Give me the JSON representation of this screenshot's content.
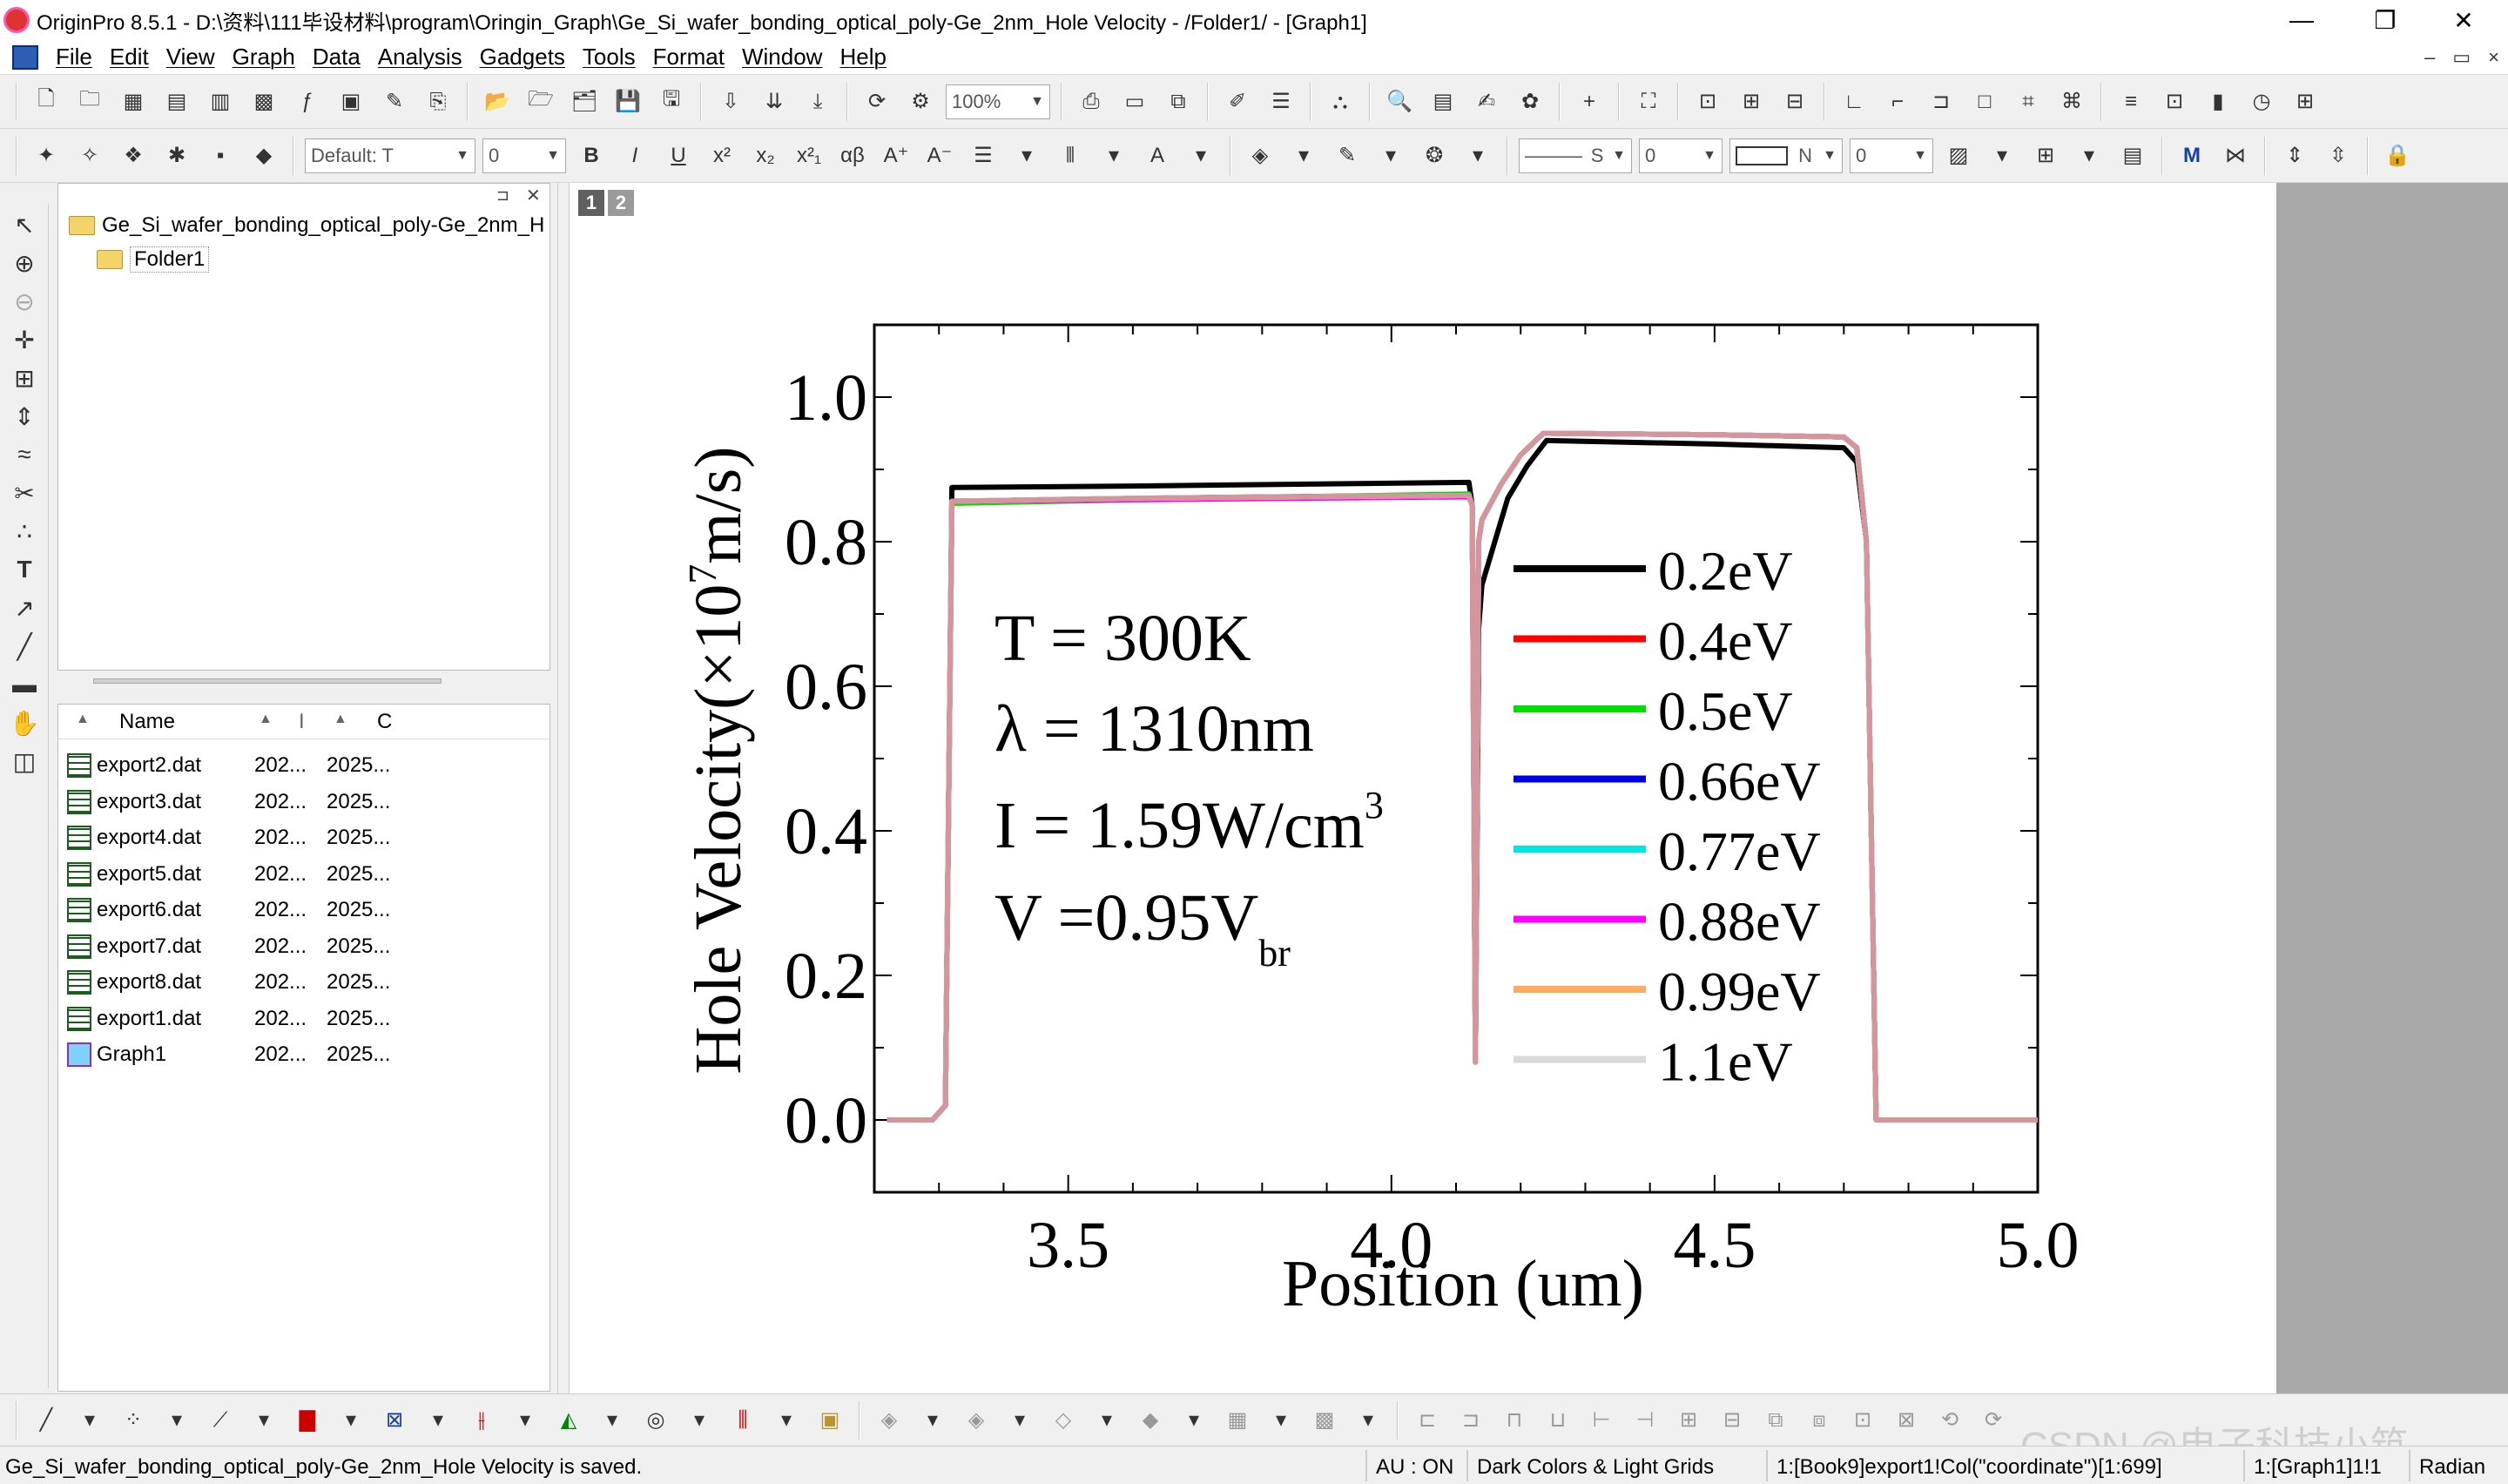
{
  "window": {
    "title": "OriginPro 8.5.1 - D:\\资料\\111毕设材料\\program\\Oringin_Graph\\Ge_Si_wafer_bonding_optical_poly-Ge_2nm_Hole Velocity - /Folder1/ - [Graph1]",
    "minimize": "—",
    "restore": "❐",
    "close": "✕"
  },
  "menu": {
    "items": [
      "File",
      "Edit",
      "View",
      "Graph",
      "Data",
      "Analysis",
      "Gadgets",
      "Tools",
      "Format",
      "Window",
      "Help"
    ],
    "mdi_min": "–",
    "mdi_restore": "▭",
    "mdi_close": "×"
  },
  "toolbar": {
    "zoom": "100%",
    "font": "Default: T",
    "font_size": "0",
    "line_style": "S",
    "line_width": "0",
    "fill_label": "N",
    "fill_size": "0"
  },
  "project": {
    "root": "Ge_Si_wafer_bonding_optical_poly-Ge_2nm_H",
    "folder": "Folder1",
    "columns": {
      "name": "Name",
      "col2": "I",
      "col3": "C"
    },
    "files": [
      {
        "name": "export2.dat",
        "c2": "202...",
        "c3": "2025..."
      },
      {
        "name": "export3.dat",
        "c2": "202...",
        "c3": "2025..."
      },
      {
        "name": "export4.dat",
        "c2": "202...",
        "c3": "2025..."
      },
      {
        "name": "export5.dat",
        "c2": "202...",
        "c3": "2025..."
      },
      {
        "name": "export6.dat",
        "c2": "202...",
        "c3": "2025..."
      },
      {
        "name": "export7.dat",
        "c2": "202...",
        "c3": "2025..."
      },
      {
        "name": "export8.dat",
        "c2": "202...",
        "c3": "2025..."
      },
      {
        "name": "export1.dat",
        "c2": "202...",
        "c3": "2025..."
      },
      {
        "name": "Graph1",
        "c2": "202...",
        "c3": "2025..."
      }
    ]
  },
  "layers": [
    "1",
    "2"
  ],
  "status": {
    "message": "Ge_Si_wafer_bonding_optical_poly-Ge_2nm_Hole Velocity is saved.",
    "au": "AU : ON",
    "theme": "Dark Colors & Light Grids",
    "cell": "1:[Book9]export1!Col(\"coordinate\")[1:699]",
    "graph": "1:[Graph1]1!1",
    "angle": "Radian"
  },
  "watermark": "CSDN @电子科技小筑",
  "colors": {
    "accent": "#2b5fb3",
    "plot_bg": "#ffffff",
    "mdi_bg": "#a8a8a8"
  },
  "chart_data": {
    "type": "line",
    "xlabel": "Position (um)",
    "ylabel_main": "Hole Velocity(×10",
    "ylabel_sup": "7",
    "ylabel_tail": "m/s)",
    "xlim": [
      3.2,
      5.0
    ],
    "ylim": [
      -0.1,
      1.1
    ],
    "xticks": [
      3.5,
      4.0,
      4.5,
      5.0
    ],
    "xtick_labels": [
      "3.5",
      "4.0",
      "4.5",
      "5.0"
    ],
    "yticks": [
      0.0,
      0.2,
      0.4,
      0.6,
      0.8,
      1.0
    ],
    "ytick_labels": [
      "0.0",
      "0.2",
      "0.4",
      "0.6",
      "0.8",
      "1.0"
    ],
    "legend_position": "right",
    "annotations": {
      "line1": "T = 300K",
      "line2": "λ = 1310nm",
      "line3_main": "I = 1.59W/cm",
      "line3_sup": "3",
      "line4_main": "V =0.95V",
      "line4_sub": "br"
    },
    "series": [
      {
        "name": "0.2eV",
        "color": "#000000",
        "x": [
          3.22,
          3.29,
          3.31,
          3.32,
          3.6,
          4.12,
          4.125,
          4.13,
          4.135,
          4.14,
          4.16,
          4.18,
          4.21,
          4.24,
          4.5,
          4.7,
          4.72,
          4.735,
          4.75,
          5.0
        ],
        "y": [
          0.0,
          0.0,
          0.02,
          0.875,
          0.877,
          0.882,
          0.85,
          0.08,
          0.68,
          0.74,
          0.8,
          0.86,
          0.905,
          0.94,
          0.935,
          0.93,
          0.91,
          0.8,
          0.0,
          0.0
        ]
      },
      {
        "name": "0.4eV",
        "color": "#ff0000",
        "x": [
          3.22,
          3.29,
          3.31,
          3.32,
          3.6,
          4.12,
          4.125,
          4.13,
          4.135,
          4.14,
          4.17,
          4.2,
          4.235,
          4.5,
          4.7,
          4.72,
          4.735,
          4.75,
          5.0
        ],
        "y": [
          0.0,
          0.0,
          0.02,
          0.855,
          0.86,
          0.865,
          0.85,
          0.08,
          0.8,
          0.83,
          0.88,
          0.92,
          0.95,
          0.948,
          0.945,
          0.93,
          0.8,
          0.0,
          0.0
        ]
      },
      {
        "name": "0.5eV",
        "color": "#00e000",
        "x": [
          3.22,
          3.29,
          3.31,
          3.32,
          3.6,
          4.12,
          4.125,
          4.13,
          4.135,
          4.14,
          4.17,
          4.2,
          4.235,
          4.5,
          4.7,
          4.72,
          4.735,
          4.75,
          5.0
        ],
        "y": [
          0.0,
          0.0,
          0.02,
          0.853,
          0.858,
          0.866,
          0.85,
          0.08,
          0.8,
          0.83,
          0.88,
          0.92,
          0.95,
          0.948,
          0.945,
          0.93,
          0.8,
          0.0,
          0.0
        ]
      },
      {
        "name": "0.66eV",
        "color": "#0000e6",
        "x": [
          3.22,
          3.29,
          3.31,
          3.32,
          3.6,
          4.12,
          4.125,
          4.13,
          4.135,
          4.14,
          4.17,
          4.2,
          4.235,
          4.5,
          4.7,
          4.72,
          4.735,
          4.75,
          5.0
        ],
        "y": [
          0.0,
          0.0,
          0.02,
          0.856,
          0.86,
          0.864,
          0.85,
          0.08,
          0.8,
          0.83,
          0.88,
          0.92,
          0.95,
          0.948,
          0.945,
          0.93,
          0.8,
          0.0,
          0.0
        ]
      },
      {
        "name": "0.77eV",
        "color": "#00e6e6",
        "x": [
          3.22,
          3.29,
          3.31,
          3.32,
          3.6,
          4.12,
          4.125,
          4.13,
          4.135,
          4.14,
          4.17,
          4.2,
          4.235,
          4.5,
          4.7,
          4.72,
          4.735,
          4.75,
          5.0
        ],
        "y": [
          0.0,
          0.0,
          0.02,
          0.856,
          0.86,
          0.864,
          0.85,
          0.08,
          0.8,
          0.83,
          0.88,
          0.92,
          0.95,
          0.948,
          0.945,
          0.93,
          0.8,
          0.0,
          0.0
        ]
      },
      {
        "name": "0.88eV",
        "color": "#ff00ff",
        "x": [
          3.22,
          3.29,
          3.31,
          3.32,
          3.6,
          4.12,
          4.125,
          4.13,
          4.135,
          4.14,
          4.17,
          4.2,
          4.235,
          4.5,
          4.7,
          4.72,
          4.735,
          4.75,
          5.0
        ],
        "y": [
          0.0,
          0.0,
          0.02,
          0.856,
          0.858,
          0.862,
          0.85,
          0.08,
          0.8,
          0.83,
          0.88,
          0.92,
          0.95,
          0.948,
          0.945,
          0.93,
          0.8,
          0.0,
          0.0
        ]
      },
      {
        "name": "0.99eV",
        "color": "#ffaa60",
        "x": [
          3.22,
          3.29,
          3.31,
          3.32,
          3.6,
          4.12,
          4.125,
          4.13,
          4.135,
          4.14,
          4.17,
          4.2,
          4.235,
          4.5,
          4.7,
          4.72,
          4.735,
          4.75,
          5.0
        ],
        "y": [
          0.0,
          0.0,
          0.02,
          0.856,
          0.86,
          0.864,
          0.85,
          0.08,
          0.8,
          0.83,
          0.88,
          0.92,
          0.95,
          0.948,
          0.945,
          0.93,
          0.8,
          0.0,
          0.0
        ]
      },
      {
        "name": "1.1eV",
        "color": "#d9d9d9",
        "x": [
          3.22,
          3.29,
          3.31,
          3.32,
          3.6,
          4.12,
          4.125,
          4.13,
          4.135,
          4.14,
          4.17,
          4.2,
          4.235,
          4.5,
          4.7,
          4.72,
          4.735,
          4.75,
          5.0
        ],
        "y": [
          0.0,
          0.0,
          0.02,
          0.856,
          0.86,
          0.864,
          0.85,
          0.08,
          0.8,
          0.83,
          0.88,
          0.92,
          0.95,
          0.948,
          0.945,
          0.93,
          0.8,
          0.0,
          0.0
        ]
      },
      {
        "name": "",
        "color": "#d4959c",
        "x": [
          3.22,
          3.29,
          3.31,
          3.32,
          3.6,
          4.12,
          4.125,
          4.13,
          4.135,
          4.14,
          4.17,
          4.2,
          4.235,
          4.5,
          4.7,
          4.72,
          4.735,
          4.75,
          5.0
        ],
        "y": [
          0.0,
          0.0,
          0.02,
          0.856,
          0.86,
          0.864,
          0.85,
          0.08,
          0.8,
          0.83,
          0.88,
          0.92,
          0.95,
          0.948,
          0.945,
          0.93,
          0.8,
          0.0,
          0.0
        ]
      }
    ]
  }
}
